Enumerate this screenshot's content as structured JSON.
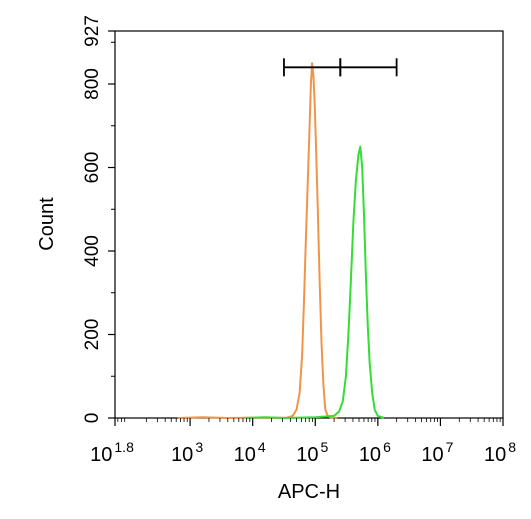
{
  "chart_data": {
    "type": "histogram",
    "title": "",
    "xlabel": "APC-H",
    "ylabel": "Count",
    "x_scale": "log10",
    "xlim": [
      1.8,
      8
    ],
    "ylim": [
      0,
      927
    ],
    "grid": false,
    "legend": "none",
    "y_ticks": [
      {
        "value": 0,
        "label": "0"
      },
      {
        "value": 200,
        "label": "200"
      },
      {
        "value": 400,
        "label": "400"
      },
      {
        "value": 600,
        "label": "600"
      },
      {
        "value": 800,
        "label": "800"
      },
      {
        "value": 927,
        "label": "927"
      }
    ],
    "x_ticks": [
      {
        "value": 1.8,
        "base": "10",
        "exp": "1.8"
      },
      {
        "value": 3,
        "base": "10",
        "exp": "3"
      },
      {
        "value": 4,
        "base": "10",
        "exp": "4"
      },
      {
        "value": 5,
        "base": "10",
        "exp": "5"
      },
      {
        "value": 6,
        "base": "10",
        "exp": "6"
      },
      {
        "value": 7,
        "base": "10",
        "exp": "7"
      },
      {
        "value": 8,
        "base": "10",
        "exp": "8"
      }
    ],
    "gates": [
      {
        "x_start": 4.5,
        "x_end": 5.4
      },
      {
        "x_start": 5.4,
        "x_end": 6.3
      }
    ],
    "gate_y": 840,
    "series": [
      {
        "color": "#F0944A",
        "points": [
          [
            2.8,
            0
          ],
          [
            3.2,
            2
          ],
          [
            3.6,
            0
          ],
          [
            4.0,
            1
          ],
          [
            4.3,
            0
          ],
          [
            4.55,
            1
          ],
          [
            4.64,
            5
          ],
          [
            4.7,
            20
          ],
          [
            4.75,
            60
          ],
          [
            4.79,
            150
          ],
          [
            4.82,
            280
          ],
          [
            4.85,
            430
          ],
          [
            4.88,
            560
          ],
          [
            4.91,
            700
          ],
          [
            4.93,
            800
          ],
          [
            4.95,
            850
          ],
          [
            4.97,
            820
          ],
          [
            4.99,
            760
          ],
          [
            5.01,
            660
          ],
          [
            5.04,
            500
          ],
          [
            5.07,
            330
          ],
          [
            5.1,
            180
          ],
          [
            5.13,
            80
          ],
          [
            5.16,
            20
          ],
          [
            5.2,
            5
          ],
          [
            5.25,
            1
          ],
          [
            5.35,
            0
          ]
        ]
      },
      {
        "color": "#33DD33",
        "points": [
          [
            3.9,
            0
          ],
          [
            4.2,
            2
          ],
          [
            4.5,
            0
          ],
          [
            5.0,
            2
          ],
          [
            5.3,
            5
          ],
          [
            5.38,
            15
          ],
          [
            5.44,
            40
          ],
          [
            5.49,
            100
          ],
          [
            5.53,
            200
          ],
          [
            5.57,
            330
          ],
          [
            5.61,
            470
          ],
          [
            5.65,
            570
          ],
          [
            5.69,
            630
          ],
          [
            5.72,
            650
          ],
          [
            5.75,
            600
          ],
          [
            5.78,
            480
          ],
          [
            5.81,
            340
          ],
          [
            5.84,
            220
          ],
          [
            5.87,
            130
          ],
          [
            5.91,
            60
          ],
          [
            5.95,
            20
          ],
          [
            6.0,
            5
          ],
          [
            6.1,
            0
          ]
        ]
      }
    ]
  }
}
